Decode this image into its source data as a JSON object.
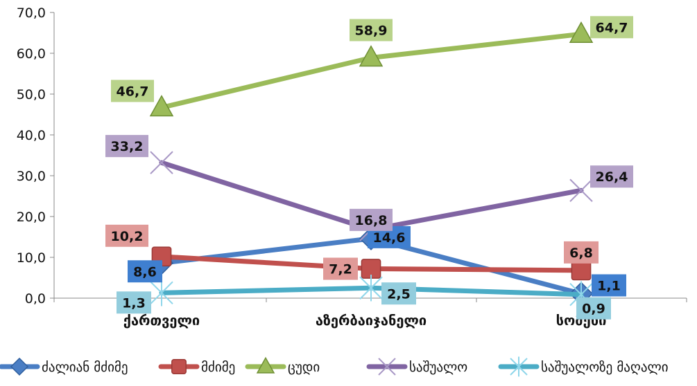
{
  "chart_data": {
    "type": "line",
    "categories": [
      "ქართველი",
      "აზერბაიჯანელი",
      "სომეხი"
    ],
    "series": [
      {
        "name": "ძალიან მძიმე",
        "values": [
          8.6,
          14.6,
          1.1
        ],
        "labels": [
          "8,6",
          "14,6",
          "1,1"
        ],
        "color": "#4a7ec4",
        "marker": "diamond",
        "label_bg": "#3f7fd0"
      },
      {
        "name": "მძიმე",
        "values": [
          10.2,
          7.2,
          6.8
        ],
        "labels": [
          "10,2",
          "7,2",
          "6,8"
        ],
        "color": "#c0504d",
        "marker": "square",
        "label_bg": "#e09a98"
      },
      {
        "name": "ცუდი",
        "values": [
          46.7,
          58.9,
          64.7
        ],
        "labels": [
          "46,7",
          "58,9",
          "64,7"
        ],
        "color": "#9bbb59",
        "marker": "triangle",
        "label_bg": "#b9d38b"
      },
      {
        "name": "საშუალო",
        "values": [
          33.2,
          16.8,
          26.4
        ],
        "labels": [
          "33,2",
          "16,8",
          "26,4"
        ],
        "color": "#8064a2",
        "marker": "x",
        "label_bg": "#b4a2c8"
      },
      {
        "name": "საშუალოზე მაღალი",
        "values": [
          1.3,
          2.5,
          0.9
        ],
        "labels": [
          "1,3",
          "2,5",
          "0,9"
        ],
        "color": "#4bacc6",
        "marker": "star",
        "label_bg": "#93cddd"
      }
    ],
    "y_ticks": [
      "0,0",
      "10,0",
      "20,0",
      "30,0",
      "40,0",
      "50,0",
      "60,0",
      "70,0"
    ],
    "ylim": [
      0,
      70
    ],
    "grid": false,
    "legend_position": "bottom"
  }
}
